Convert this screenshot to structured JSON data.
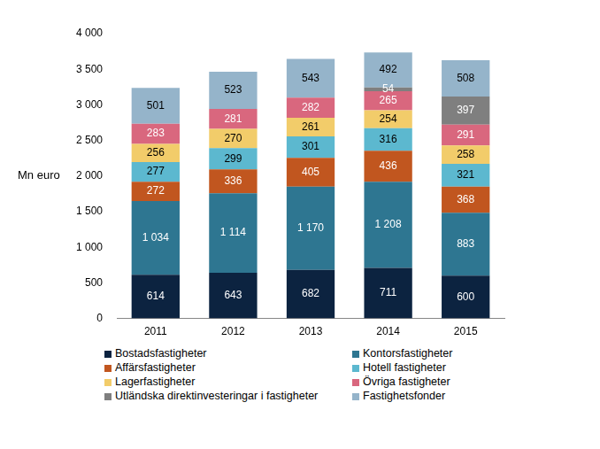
{
  "chart_data": {
    "type": "bar",
    "stacked": true,
    "y_label": "Mn euro",
    "categories": [
      "2011",
      "2012",
      "2013",
      "2014",
      "2015"
    ],
    "series": [
      {
        "name": "Bostadsfastigheter",
        "color": "#0c2340",
        "values": [
          614,
          643,
          682,
          711,
          600
        ]
      },
      {
        "name": "Kontorsfastigheter",
        "color": "#2e7691",
        "values": [
          1034,
          1114,
          1170,
          1208,
          883
        ],
        "value_labels": [
          "1 034",
          "1 114",
          "1 170",
          "1 208",
          "883"
        ]
      },
      {
        "name": "Affärsfastigheter",
        "color": "#c1561f",
        "values": [
          272,
          336,
          405,
          436,
          368
        ]
      },
      {
        "name": "Hotell fastigheter",
        "color": "#5cb8cf",
        "values": [
          277,
          299,
          301,
          316,
          321
        ]
      },
      {
        "name": "Lagerfastigheter",
        "color": "#f2cc6a",
        "values": [
          256,
          270,
          261,
          254,
          258
        ]
      },
      {
        "name": "Övriga fastigheter",
        "color": "#d9677e",
        "values": [
          283,
          281,
          282,
          265,
          291
        ]
      },
      {
        "name": "Utländska direktinvesteringar i fastigheter",
        "color": "#7f7f7f",
        "values": [
          null,
          null,
          null,
          54,
          397
        ]
      },
      {
        "name": "Fastighetsfonder",
        "color": "#95b4ca",
        "values": [
          501,
          523,
          543,
          492,
          508
        ]
      }
    ],
    "ylim": [
      0,
      4000
    ],
    "yticks": [
      {
        "value": 0,
        "label": "0"
      },
      {
        "value": 500,
        "label": "500"
      },
      {
        "value": 1000,
        "label": "1 000"
      },
      {
        "value": 1500,
        "label": "1 500"
      },
      {
        "value": 2000,
        "label": "2 000"
      },
      {
        "value": 2500,
        "label": "2 500"
      },
      {
        "value": 3000,
        "label": "3 000"
      },
      {
        "value": 3500,
        "label": "3 500"
      },
      {
        "value": 4000,
        "label": "4 000"
      }
    ],
    "grid": false,
    "legend": "bottom",
    "data_labels": true
  }
}
